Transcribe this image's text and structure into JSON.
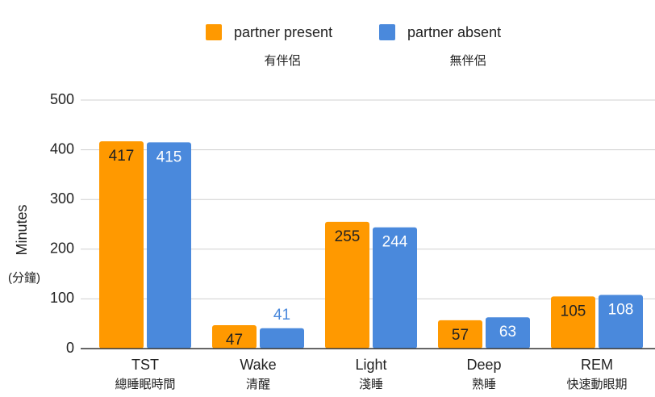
{
  "chart_data": {
    "type": "bar",
    "categories": [
      "TST",
      "Wake",
      "Light",
      "Deep",
      "REM"
    ],
    "category_notes": [
      "總睡眠時間",
      "清醒",
      "淺睡",
      "熟睡",
      "快速動眼期"
    ],
    "series": [
      {
        "name": "partner present",
        "note": "有伴侶",
        "color": "#ff9900",
        "values": [
          417,
          47,
          255,
          57,
          105
        ]
      },
      {
        "name": "partner absent",
        "note": "無伴侶",
        "color": "#4a89dc",
        "values": [
          415,
          41,
          244,
          63,
          108
        ]
      }
    ],
    "y_label": "Minutes",
    "y_label_note": "(分鐘)",
    "ylim": [
      0,
      500
    ],
    "yticks": [
      0,
      100,
      200,
      300,
      400,
      500
    ],
    "grid": true,
    "legend": "top"
  }
}
